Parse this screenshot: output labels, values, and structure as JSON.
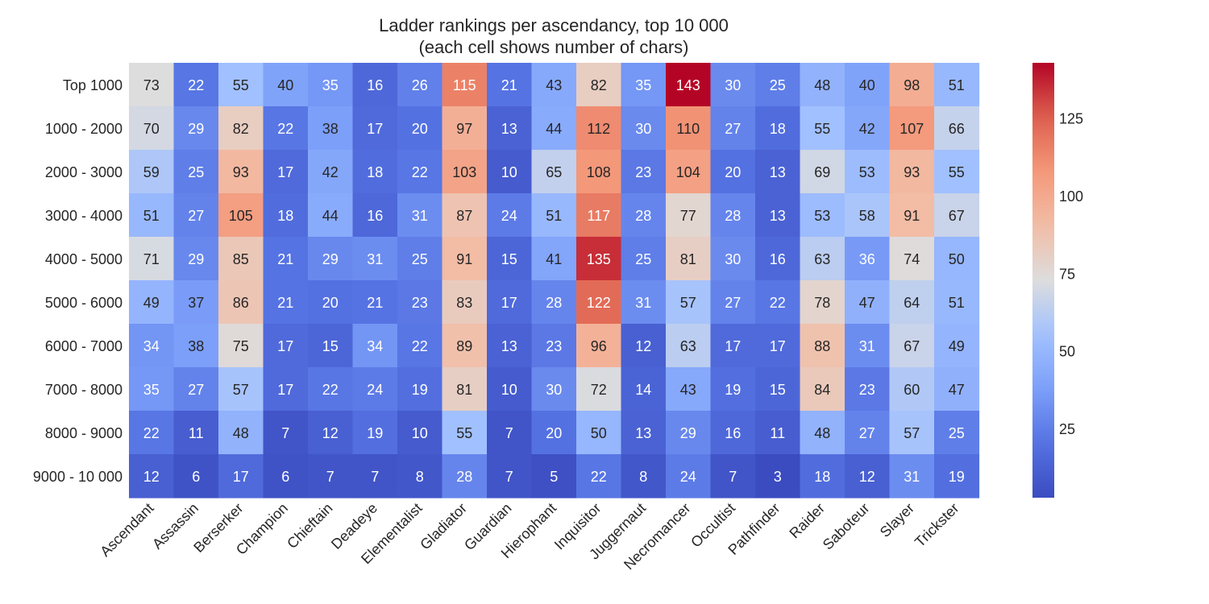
{
  "chart_data": {
    "type": "heatmap",
    "title_line1": "Ladder rankings per ascendancy, top 10 000",
    "title_line2": "(each cell shows number of chars)",
    "xlabel": "",
    "ylabel": "",
    "rows": [
      "Top 1000",
      "1000 - 2000",
      "2000 - 3000",
      "3000 - 4000",
      "4000 - 5000",
      "5000 - 6000",
      "6000 - 7000",
      "7000 - 8000",
      "8000 - 9000",
      "9000 - 10 000"
    ],
    "columns": [
      "Ascendant",
      "Assassin",
      "Berserker",
      "Champion",
      "Chieftain",
      "Deadeye",
      "Elementalist",
      "Gladiator",
      "Guardian",
      "Hierophant",
      "Inquisitor",
      "Juggernaut",
      "Necromancer",
      "Occultist",
      "Pathfinder",
      "Raider",
      "Saboteur",
      "Slayer",
      "Trickster"
    ],
    "values": [
      [
        73,
        22,
        55,
        40,
        35,
        16,
        26,
        115,
        21,
        43,
        82,
        35,
        143,
        30,
        25,
        48,
        40,
        98,
        51
      ],
      [
        70,
        29,
        82,
        22,
        38,
        17,
        20,
        97,
        13,
        44,
        112,
        30,
        110,
        27,
        18,
        55,
        42,
        107,
        66
      ],
      [
        59,
        25,
        93,
        17,
        42,
        18,
        22,
        103,
        10,
        65,
        108,
        23,
        104,
        20,
        13,
        69,
        53,
        93,
        55
      ],
      [
        51,
        27,
        105,
        18,
        44,
        16,
        31,
        87,
        24,
        51,
        117,
        28,
        77,
        28,
        13,
        53,
        58,
        91,
        67
      ],
      [
        71,
        29,
        85,
        21,
        29,
        31,
        25,
        91,
        15,
        41,
        135,
        25,
        81,
        30,
        16,
        63,
        36,
        74,
        50
      ],
      [
        49,
        37,
        86,
        21,
        20,
        21,
        23,
        83,
        17,
        28,
        122,
        31,
        57,
        27,
        22,
        78,
        47,
        64,
        51
      ],
      [
        34,
        38,
        75,
        17,
        15,
        34,
        22,
        89,
        13,
        23,
        96,
        12,
        63,
        17,
        17,
        88,
        31,
        67,
        49
      ],
      [
        35,
        27,
        57,
        17,
        22,
        24,
        19,
        81,
        10,
        30,
        72,
        14,
        43,
        19,
        15,
        84,
        23,
        60,
        47
      ],
      [
        22,
        11,
        48,
        7,
        12,
        19,
        10,
        55,
        7,
        20,
        50,
        13,
        29,
        16,
        11,
        48,
        27,
        57,
        25
      ],
      [
        12,
        6,
        17,
        6,
        7,
        7,
        8,
        28,
        7,
        5,
        22,
        8,
        24,
        7,
        3,
        18,
        12,
        31,
        19
      ]
    ],
    "vmin": 3,
    "vmax": 143,
    "colormap": "coolwarm",
    "colorbar_ticks": [
      25,
      50,
      75,
      100,
      125
    ],
    "annotations": true,
    "grid": false
  }
}
